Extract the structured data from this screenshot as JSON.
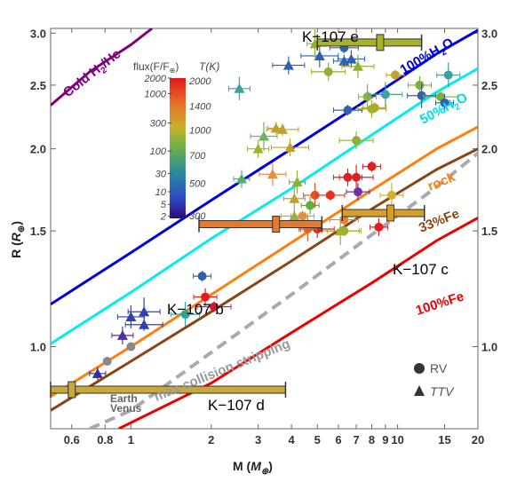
{
  "chart_data": {
    "type": "scatter",
    "xlabel_main": "M",
    "xlabel_sub": "E",
    "xlabel_prefix": "M (",
    "xlabel_suffix": ")",
    "ylabel_prefix": "R (",
    "ylabel_main": "R",
    "ylabel_sub": "⊕",
    "ylabel_suffix": ")",
    "xscale": "log",
    "yscale": "log",
    "xlim": [
      0.5,
      20
    ],
    "ylim": [
      0.75,
      3.05
    ],
    "x_ticks": [
      "0.6",
      "0.8",
      "1",
      "2",
      "3",
      "4",
      "5",
      "6",
      "7",
      "8",
      "9",
      "10",
      "15",
      "20"
    ],
    "x_tick_values": [
      0.6,
      0.8,
      1,
      2,
      3,
      4,
      5,
      6,
      7,
      8,
      9,
      10,
      15,
      20
    ],
    "y_ticks": [
      "1.0",
      "1.5",
      "2.0",
      "2.5",
      "3.0"
    ],
    "y_tick_values": [
      1.0,
      1.5,
      2.0,
      2.5,
      3.0
    ],
    "colorbar": {
      "left_title": "flux(F/F",
      "left_title_sub": "⊕",
      "right_title": "T(K)",
      "left_ticks": [
        "2000",
        "1000",
        "300",
        "100",
        "30",
        "10",
        "5",
        "2"
      ],
      "right_ticks": [
        "2000",
        "1400",
        "1000",
        "700",
        "500",
        "300"
      ]
    },
    "legend": [
      {
        "marker": "circle",
        "label": "RV"
      },
      {
        "marker": "triangle",
        "label": "TTV"
      }
    ],
    "curves": [
      {
        "label": "Cold H2/He",
        "color": "#800080",
        "points": [
          [
            0.5,
            2.33
          ],
          [
            0.7,
            2.62
          ],
          [
            1.0,
            2.88
          ],
          [
            1.2,
            3.05
          ]
        ]
      },
      {
        "label": "100%H2O",
        "color": "#0000dd",
        "points": [
          [
            0.5,
            1.16
          ],
          [
            1,
            1.39
          ],
          [
            2,
            1.67
          ],
          [
            4,
            2.0
          ],
          [
            8,
            2.4
          ],
          [
            14,
            2.79
          ],
          [
            20,
            3.03
          ]
        ]
      },
      {
        "label": "50%H2O",
        "color": "#00eeee",
        "points": [
          [
            0.5,
            1.01
          ],
          [
            1,
            1.21
          ],
          [
            2,
            1.46
          ],
          [
            4,
            1.74
          ],
          [
            8,
            2.1
          ],
          [
            14,
            2.44
          ],
          [
            20,
            2.65
          ]
        ]
      },
      {
        "label": "rock",
        "color": "#ff7f0e",
        "points": [
          [
            0.5,
            0.84
          ],
          [
            1,
            1.0
          ],
          [
            2,
            1.2
          ],
          [
            4,
            1.44
          ],
          [
            8,
            1.73
          ],
          [
            14,
            2.0
          ],
          [
            20,
            2.16
          ]
        ]
      },
      {
        "label": "33%Fe",
        "color": "#8b4513",
        "points": [
          [
            0.5,
            0.8
          ],
          [
            1,
            0.95
          ],
          [
            2,
            1.13
          ],
          [
            4,
            1.35
          ],
          [
            8,
            1.62
          ],
          [
            14,
            1.86
          ],
          [
            20,
            2.0
          ]
        ]
      },
      {
        "label": "100%Fe",
        "color": "#ee0000",
        "points": [
          [
            0.9,
            0.75
          ],
          [
            2,
            0.88
          ],
          [
            4,
            1.05
          ],
          [
            8,
            1.25
          ],
          [
            14,
            1.45
          ],
          [
            20,
            1.57
          ]
        ]
      },
      {
        "label": "max collision stripping",
        "color": "#aaaaaa",
        "dashed": true,
        "points": [
          [
            0.7,
            0.75
          ],
          [
            1,
            0.8
          ],
          [
            2,
            0.98
          ],
          [
            4,
            1.2
          ],
          [
            8,
            1.48
          ],
          [
            14,
            1.75
          ],
          [
            20,
            1.97
          ]
        ]
      }
    ],
    "curve_labels": [
      {
        "text": "Cold H",
        "sub": "2",
        "tail": "/He",
        "color": "#800080"
      },
      {
        "text": "100%H",
        "sub": "2",
        "tail": "O",
        "color": "#0000dd"
      },
      {
        "text": "50%H",
        "sub": "2",
        "tail": "O",
        "color": "#00dddd"
      },
      {
        "text": "rock",
        "sub": "",
        "tail": "",
        "color": "#ff7f0e"
      },
      {
        "text": "33%Fe",
        "sub": "",
        "tail": "",
        "color": "#8b4513"
      },
      {
        "text": "100%Fe",
        "sub": "",
        "tail": "",
        "color": "#ee0000"
      },
      {
        "text": "max collision stripping",
        "sub": "",
        "tail": "",
        "color": "#999999"
      }
    ],
    "highlighted_planets": [
      {
        "name": "K−107 b",
        "m": 3.5,
        "m_lo": 1.8,
        "m_hi": 5.2,
        "r": 1.536,
        "r_err": 0.025,
        "color": "#e8782a"
      },
      {
        "name": "K−107 c",
        "m": 9.4,
        "m_lo": 6.2,
        "m_hi": 12.6,
        "r": 1.597,
        "r_err": 0.026,
        "color": "#d4a02a"
      },
      {
        "name": "K−107 d",
        "m": 0.6,
        "m_lo": 0.5,
        "m_hi": 3.8,
        "r": 0.86,
        "r_err": 0.045,
        "color": "#c8a838"
      },
      {
        "name": "K−107 e",
        "m": 8.6,
        "m_lo": 5.0,
        "m_hi": 12.3,
        "r": 2.903,
        "r_err": 0.035,
        "color": "#a8b030"
      }
    ],
    "solar_system": [
      {
        "name": "Earth",
        "m": 1.0,
        "r": 1.0
      },
      {
        "name": "Venus",
        "m": 0.815,
        "r": 0.95
      }
    ],
    "rv_points": [
      {
        "m": 1.85,
        "r": 1.28,
        "c": "#3060b0"
      },
      {
        "m": 1.9,
        "r": 1.19,
        "c": "#e02020"
      },
      {
        "m": 1.6,
        "r": 1.12,
        "c": "#30a090"
      },
      {
        "m": 2.05,
        "r": 1.15,
        "c": "#d01830"
      },
      {
        "m": 4.7,
        "r": 1.64,
        "c": "#60b030"
      },
      {
        "m": 4.9,
        "r": 1.7,
        "c": "#e85020"
      },
      {
        "m": 5.6,
        "r": 1.7,
        "c": "#e83020"
      },
      {
        "m": 5.0,
        "r": 1.51,
        "c": "#e02020"
      },
      {
        "m": 4.6,
        "r": 1.51,
        "c": "#e86030"
      },
      {
        "m": 4.4,
        "r": 1.58,
        "c": "#e89040"
      },
      {
        "m": 6.5,
        "r": 1.81,
        "c": "#e02020"
      },
      {
        "m": 7.0,
        "r": 1.81,
        "c": "#e02020"
      },
      {
        "m": 8.0,
        "r": 1.88,
        "c": "#e02020"
      },
      {
        "m": 7.1,
        "r": 1.72,
        "c": "#7030a0"
      },
      {
        "m": 6.3,
        "r": 1.56,
        "c": "#e88030"
      },
      {
        "m": 6.3,
        "r": 1.5,
        "c": "#a0b030"
      },
      {
        "m": 8.5,
        "r": 1.52,
        "c": "#e02020"
      },
      {
        "m": 9.5,
        "r": 1.7,
        "c": "#d0b030"
      },
      {
        "m": 6.5,
        "r": 2.29,
        "c": "#3060b0"
      },
      {
        "m": 7.0,
        "r": 2.06,
        "c": "#90b030"
      },
      {
        "m": 7.7,
        "r": 2.4,
        "c": "#90b030"
      },
      {
        "m": 8.2,
        "r": 2.31,
        "c": "#c0a030"
      },
      {
        "m": 8.0,
        "r": 2.3,
        "c": "#a0b030"
      },
      {
        "m": 9.0,
        "r": 2.42,
        "c": "#40a0a0"
      },
      {
        "m": 9.8,
        "r": 2.59,
        "c": "#c0a030"
      },
      {
        "m": 12.1,
        "r": 2.5,
        "c": "#80b030"
      },
      {
        "m": 12.3,
        "r": 2.41,
        "c": "#3060b0"
      },
      {
        "m": 14.5,
        "r": 2.4,
        "c": "#80b030"
      },
      {
        "m": 15.0,
        "r": 2.35,
        "c": "#3060b0"
      },
      {
        "m": 15.5,
        "r": 2.59,
        "c": "#40a0a0"
      },
      {
        "m": 6.3,
        "r": 2.85,
        "c": "#3060b0"
      },
      {
        "m": 5.5,
        "r": 2.62,
        "c": "#90b030"
      }
    ],
    "ttv_points": [
      {
        "m": 0.75,
        "r": 0.91,
        "c": "#3030a0"
      },
      {
        "m": 0.93,
        "r": 1.04,
        "c": "#5030a0"
      },
      {
        "m": 1.0,
        "r": 1.11,
        "c": "#3040b0"
      },
      {
        "m": 1.12,
        "r": 1.13,
        "c": "#3040b0"
      },
      {
        "m": 1.12,
        "r": 1.08,
        "c": "#3040b0"
      },
      {
        "m": 2.6,
        "r": 1.8,
        "c": "#50b070"
      },
      {
        "m": 2.55,
        "r": 2.47,
        "c": "#40a0a0"
      },
      {
        "m": 3.15,
        "r": 2.09,
        "c": "#70b060"
      },
      {
        "m": 3.7,
        "r": 2.14,
        "c": "#c0a030"
      },
      {
        "m": 3.95,
        "r": 2.01,
        "c": "#c0a030"
      },
      {
        "m": 4.2,
        "r": 1.78,
        "c": "#90b030"
      },
      {
        "m": 4.1,
        "r": 1.68,
        "c": "#c0a030"
      },
      {
        "m": 4.1,
        "r": 1.58,
        "c": "#a0b030"
      },
      {
        "m": 3.9,
        "r": 2.68,
        "c": "#3060b0"
      },
      {
        "m": 5.1,
        "r": 2.77,
        "c": "#3060b0"
      },
      {
        "m": 4.9,
        "r": 2.89,
        "c": "#90b030"
      },
      {
        "m": 6.3,
        "r": 2.72,
        "c": "#3060b0"
      },
      {
        "m": 6.7,
        "r": 2.74,
        "c": "#3060b0"
      },
      {
        "m": 7.1,
        "r": 2.67,
        "c": "#90b030"
      },
      {
        "m": 6.1,
        "r": 1.5,
        "c": "#a0b030"
      },
      {
        "m": 3.5,
        "r": 2.15,
        "c": "#c0a030"
      },
      {
        "m": 3.0,
        "r": 2.0,
        "c": "#a0b030"
      },
      {
        "m": 3.4,
        "r": 1.83,
        "c": "#e89040"
      }
    ]
  }
}
